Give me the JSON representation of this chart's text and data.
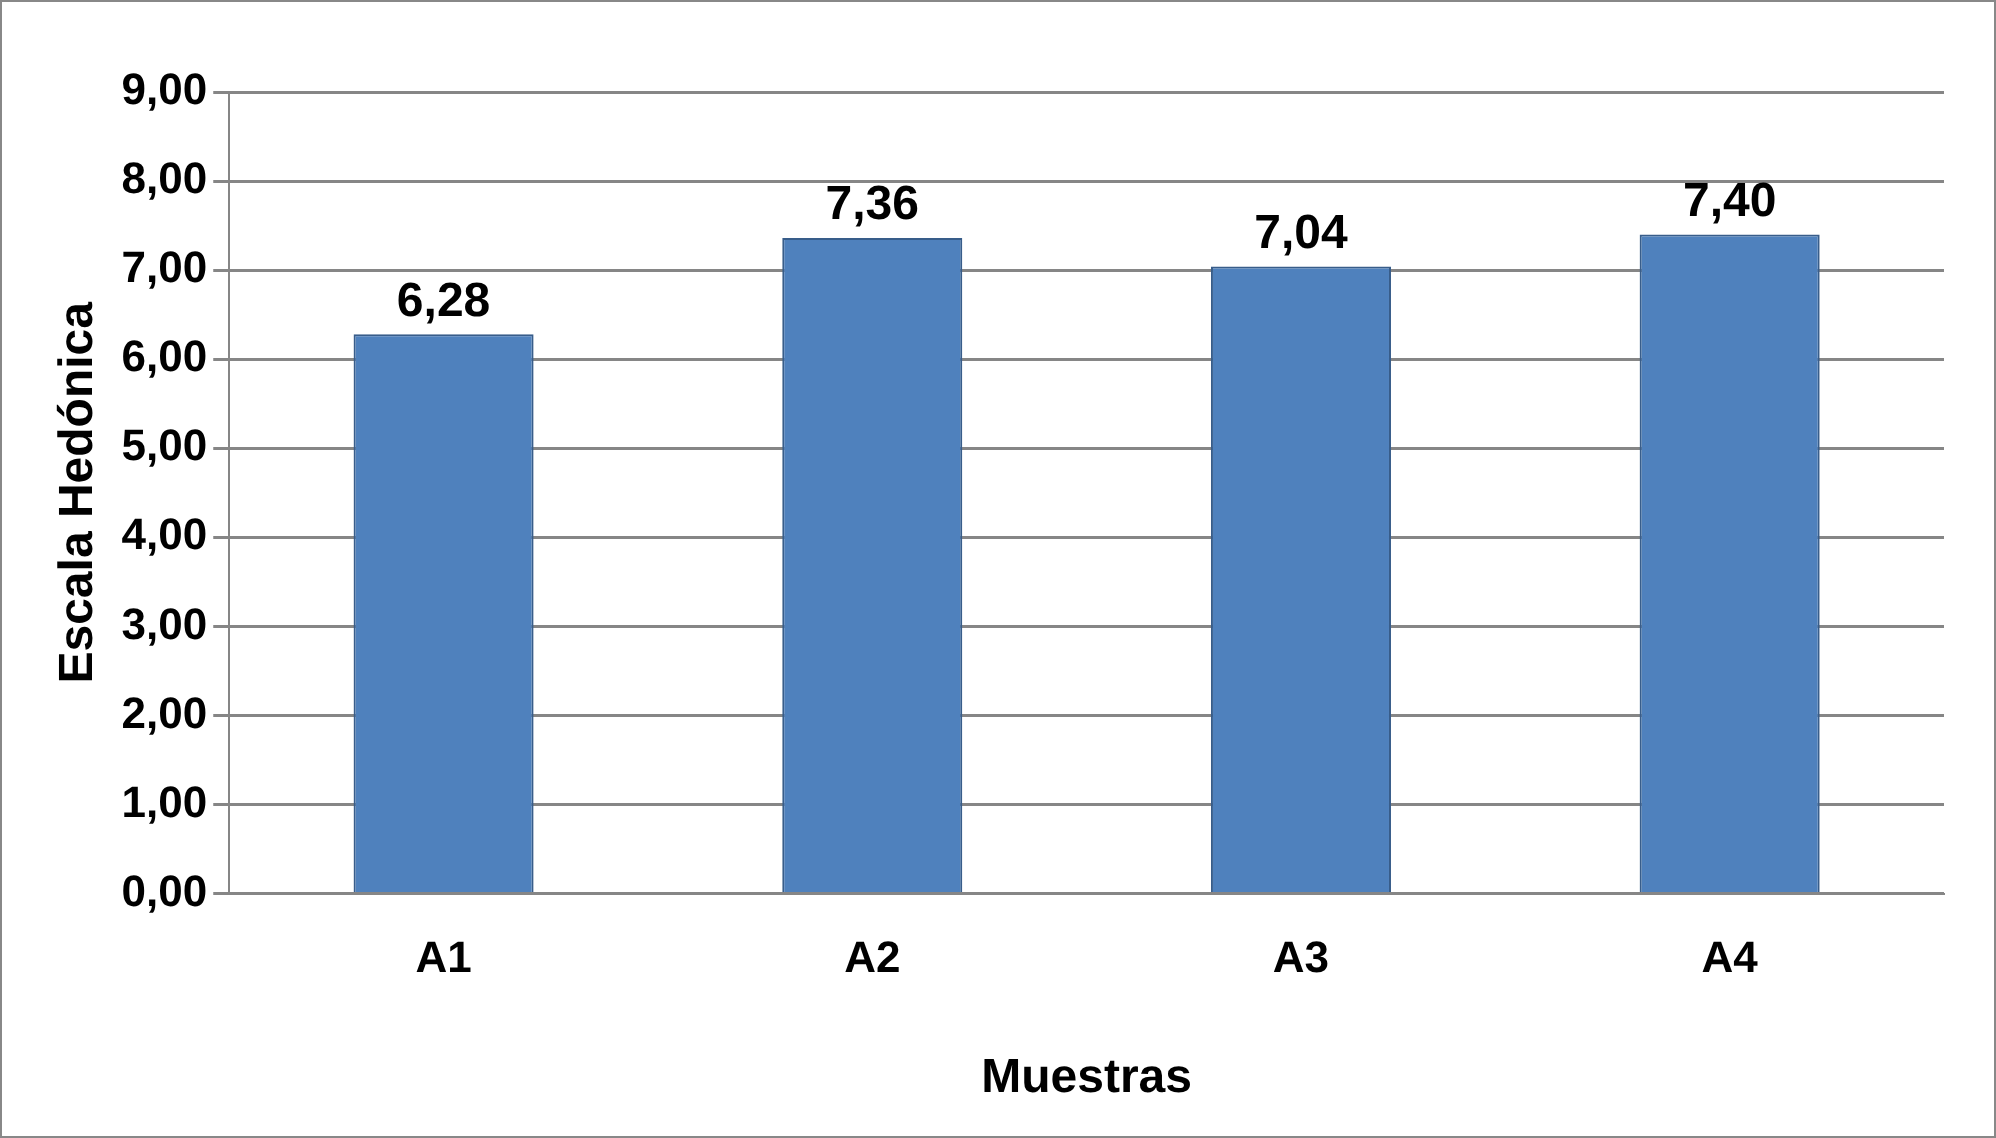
{
  "chart_data": {
    "type": "bar",
    "xlabel": "Muestras",
    "ylabel": "Escala Hedónica",
    "categories": [
      "A1",
      "A2",
      "A3",
      "A4"
    ],
    "values": [
      6.28,
      7.36,
      7.04,
      7.4
    ],
    "value_labels": [
      "6,28",
      "7,36",
      "7,04",
      "7,40"
    ],
    "color": "#4f81bd",
    "ylim": [
      0,
      9
    ],
    "yticks": [
      {
        "value": 0,
        "label": "0,00"
      },
      {
        "value": 1,
        "label": "1,00"
      },
      {
        "value": 2,
        "label": "2,00"
      },
      {
        "value": 3,
        "label": "3,00"
      },
      {
        "value": 4,
        "label": "4,00"
      },
      {
        "value": 5,
        "label": "5,00"
      },
      {
        "value": 6,
        "label": "6,00"
      },
      {
        "value": 7,
        "label": "7,00"
      },
      {
        "value": 8,
        "label": "8,00"
      },
      {
        "value": 9,
        "label": "9,00"
      }
    ],
    "grid": "y",
    "legend": false
  }
}
